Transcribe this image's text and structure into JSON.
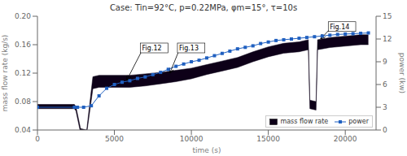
{
  "chart_data": {
    "type": "combo",
    "title": "Case: Tin=92°C, p=0.22MPa, φm=15°, τ=10s",
    "xlabel": "time (s)",
    "ylabel": "mass flow rate (kg/s)",
    "y2label": "power (kw)",
    "xlim": [
      0,
      22000
    ],
    "xticks": [
      0,
      5000,
      10000,
      15000,
      20000
    ],
    "ylim": [
      0.04,
      0.2
    ],
    "yticks": [
      0.04,
      0.08,
      0.12,
      0.16,
      {
        "value": 0.2,
        "label": "0.20"
      }
    ],
    "y2lim": [
      0,
      15
    ],
    "y2ticks": [
      0,
      3,
      6,
      9,
      12,
      15
    ],
    "grid": false,
    "legend": "lower right",
    "series": [
      {
        "name": "mass flow rate",
        "type": "band",
        "color": "#0d0018",
        "x": [
          0,
          2400,
          2500,
          2800,
          3200,
          3600,
          4000,
          6000,
          7000,
          8000,
          9000,
          10000,
          11000,
          12000,
          13000,
          14000,
          15000,
          16000,
          17000,
          17600,
          17700,
          18100,
          18200,
          18500,
          19000,
          20000,
          21000,
          21500
        ],
        "upper": [
          0.076,
          0.076,
          0.073,
          0.042,
          0.04,
          0.115,
          0.117,
          0.117,
          0.119,
          0.121,
          0.124,
          0.127,
          0.132,
          0.137,
          0.142,
          0.15,
          0.157,
          0.162,
          0.164,
          0.167,
          0.082,
          0.08,
          0.167,
          0.168,
          0.17,
          0.172,
          0.174,
          0.174
        ],
        "lower": [
          0.07,
          0.07,
          0.067,
          0.036,
          0.035,
          0.098,
          0.1,
          0.1,
          0.102,
          0.105,
          0.108,
          0.112,
          0.118,
          0.123,
          0.128,
          0.136,
          0.143,
          0.148,
          0.15,
          0.153,
          0.07,
          0.068,
          0.153,
          0.154,
          0.156,
          0.158,
          0.16,
          0.16
        ]
      },
      {
        "name": "power",
        "type": "line",
        "axis": "y2",
        "color": "#2060c0",
        "marker": "square",
        "x": [
          0,
          2400,
          2600,
          3000,
          3500,
          4000,
          4500,
          5000,
          5500,
          6000,
          6500,
          7000,
          7500,
          8000,
          8500,
          9000,
          9500,
          10000,
          10500,
          11000,
          11500,
          12000,
          12500,
          13000,
          13500,
          14000,
          14500,
          15000,
          15500,
          16000,
          16500,
          17000,
          17500,
          18000,
          18500,
          19000,
          19500,
          20000,
          20500,
          21000,
          21500
        ],
        "values": [
          3.0,
          3.0,
          3.0,
          3.0,
          3.2,
          4.5,
          5.5,
          6.0,
          6.3,
          6.5,
          6.8,
          7.0,
          7.3,
          7.6,
          8.0,
          8.4,
          8.7,
          9.0,
          9.2,
          9.5,
          9.8,
          10.1,
          10.4,
          10.7,
          10.9,
          11.1,
          11.4,
          11.6,
          11.8,
          11.9,
          12.0,
          12.1,
          12.2,
          12.3,
          12.4,
          12.5,
          12.6,
          12.65,
          12.7,
          12.75,
          12.8
        ]
      }
    ],
    "annotations": [
      {
        "text": "Fig.12",
        "x": 6800,
        "y": 0.152,
        "arrow_x": 5800,
        "arrow_y": 0.11
      },
      {
        "text": "Fig.13",
        "x": 9200,
        "y": 0.152,
        "arrow_x": 8600,
        "arrow_y": 0.12
      },
      {
        "text": "Fig.14",
        "x": 19000,
        "y": 0.182,
        "arrow_x": 18400,
        "arrow_y": 0.168
      }
    ]
  }
}
